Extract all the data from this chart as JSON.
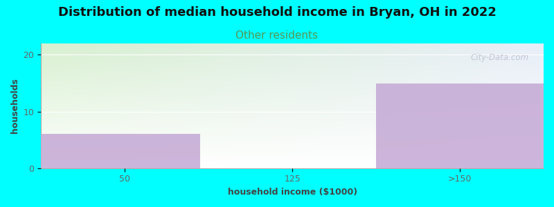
{
  "title": "Distribution of median household income in Bryan, OH in 2022",
  "subtitle": "Other residents",
  "xlabel": "household income ($1000)",
  "ylabel": "households",
  "categories": [
    "50",
    "125",
    ">150"
  ],
  "values": [
    6,
    0,
    15
  ],
  "bar_color": "#c4a8d4",
  "bg_color": "#00ffff",
  "plot_bg_top_left": "#d8f0d0",
  "plot_bg_top_right": "#e8eef8",
  "plot_bg_bottom": "#ffffff",
  "ylim": [
    0,
    22
  ],
  "yticks": [
    0,
    10,
    20
  ],
  "watermark": "City-Data.com",
  "title_fontsize": 13,
  "subtitle_fontsize": 11,
  "subtitle_color": "#559955",
  "axis_label_fontsize": 9,
  "tick_fontsize": 9,
  "watermark_color": "#bbbbcc"
}
